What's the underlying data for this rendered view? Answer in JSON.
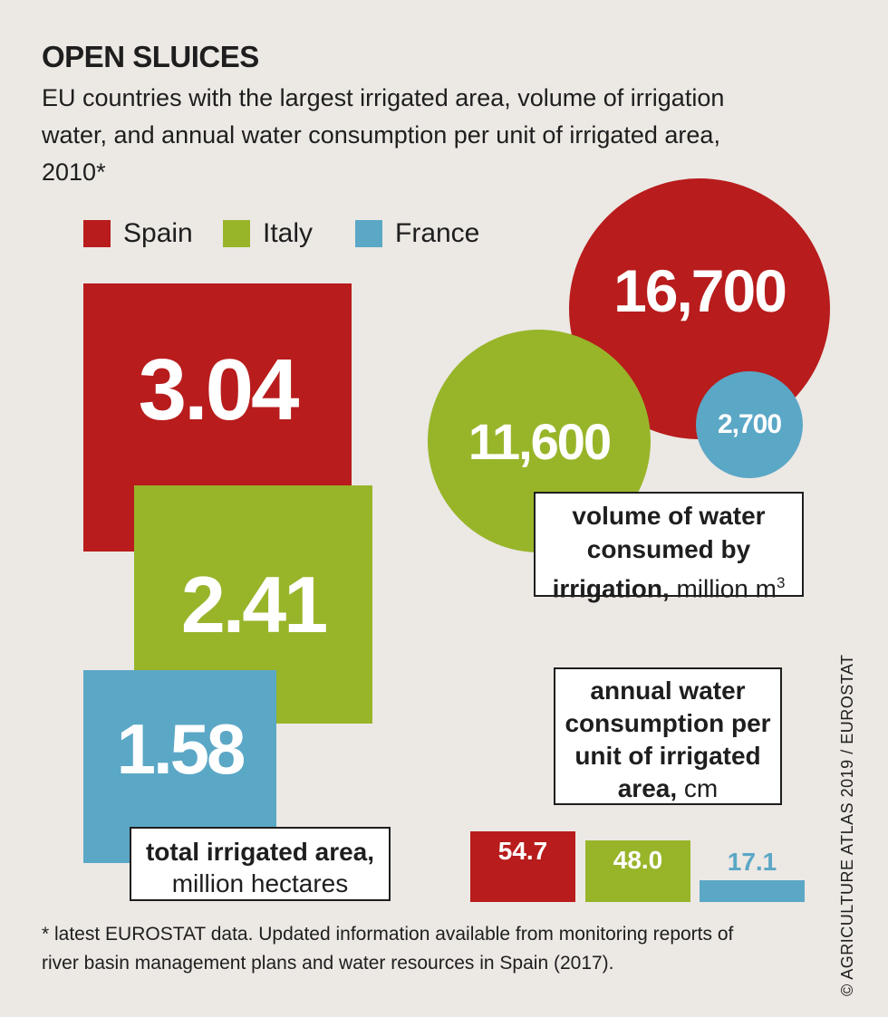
{
  "header": {
    "title": "OPEN SLUICES",
    "subtitle": "EU countries with the largest irrigated area, volume of irrigation water, and annual water consumption per unit of irrigated area, 2010*"
  },
  "legend": [
    {
      "label": "Spain",
      "color": "#b81c1c"
    },
    {
      "label": "Italy",
      "color": "#98b52a"
    },
    {
      "label": "France",
      "color": "#5ba7c6"
    }
  ],
  "chart_data": [
    {
      "type": "area-squares",
      "title": "total irrigated area, million hectares",
      "label_bold": "total irrigated area,",
      "label_unit": "million hectares",
      "categories": [
        "Spain",
        "Italy",
        "France"
      ],
      "values": [
        3.04,
        2.41,
        1.58
      ],
      "display": [
        "3.04",
        "2.41",
        "1.58"
      ]
    },
    {
      "type": "bubble",
      "title": "volume of water consumed by irrigation, million m3",
      "label_bold": "volume of water consumed by irrigation,",
      "label_unit": "million m",
      "label_sup": "3",
      "categories": [
        "Spain",
        "Italy",
        "France"
      ],
      "values": [
        16700,
        11600,
        2700
      ],
      "display": [
        "16,700",
        "11,600",
        "2,700"
      ]
    },
    {
      "type": "bar",
      "title": "annual water consumption per unit of irrigated area, cm",
      "label_bold": "annual water consumption per unit of irrigated area,",
      "label_unit": "cm",
      "categories": [
        "Spain",
        "Italy",
        "France"
      ],
      "values": [
        54.7,
        48.0,
        17.1
      ],
      "display": [
        "54.7",
        "48.0",
        "17.1"
      ]
    }
  ],
  "footnote": "* latest EUROSTAT data. Updated information available from monitoring reports of river basin management plans and water resources in Spain (2017).",
  "credit": "© AGRICULTURE ATLAS 2019 / EUROSTAT"
}
